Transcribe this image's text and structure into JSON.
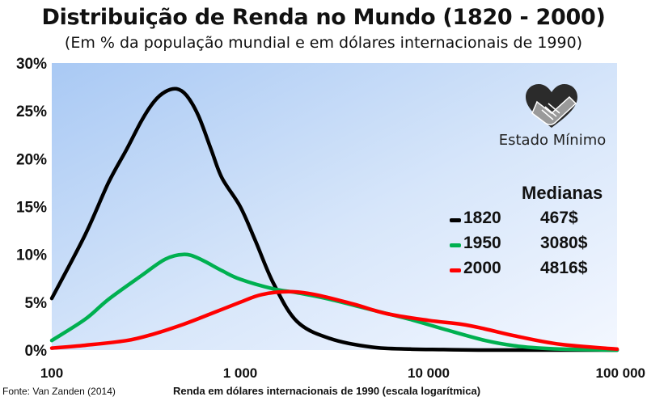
{
  "header": {
    "title": "Distribuição de Renda no Mundo (1820 - 2000)",
    "subtitle": "(Em % da população mundial e em dólares internacionais de 1990)"
  },
  "footer": {
    "source": "Fonte: Van Zanden (2014)"
  },
  "logo": {
    "text": "Estado Mínimo",
    "icon": "handshake-heart-icon"
  },
  "legend": {
    "title": "Medianas",
    "entries": [
      {
        "year": "1820",
        "median": "467$",
        "color": "#000000"
      },
      {
        "year": "1950",
        "median": "3080$",
        "color": "#00b050"
      },
      {
        "year": "2000",
        "median": "4816$",
        "color": "#ff0000"
      }
    ]
  },
  "chart_data": {
    "type": "line",
    "title": "Distribuição de Renda no Mundo (1820 - 2000)",
    "subtitle": "(Em % da população mundial e em dólares internacionais de 1990)",
    "xlabel": "Renda em dólares internacionais de 1990 (escala logarítmica)",
    "ylabel": "",
    "x_scale": "log",
    "xlim": [
      100,
      100000
    ],
    "ylim": [
      0,
      30
    ],
    "x_ticks": [
      100,
      1000,
      10000,
      100000
    ],
    "x_tick_labels": [
      "100",
      "1 000",
      "10 000",
      "100 000"
    ],
    "y_ticks": [
      0,
      5,
      10,
      15,
      20,
      25,
      30
    ],
    "y_tick_labels": [
      "0%",
      "5%",
      "10%",
      "15%",
      "20%",
      "25%",
      "30%"
    ],
    "grid": false,
    "legend_position": "right",
    "series": [
      {
        "name": "1820",
        "median": "467$",
        "color": "#000000",
        "points": [
          [
            100,
            5.4
          ],
          [
            150,
            12
          ],
          [
            200,
            17.5
          ],
          [
            250,
            21
          ],
          [
            300,
            24
          ],
          [
            350,
            26
          ],
          [
            400,
            27
          ],
          [
            460,
            27.3
          ],
          [
            520,
            26.6
          ],
          [
            600,
            24.5
          ],
          [
            700,
            21
          ],
          [
            800,
            18
          ],
          [
            1000,
            15
          ],
          [
            1200,
            11.5
          ],
          [
            1500,
            7
          ],
          [
            2000,
            3
          ],
          [
            3000,
            1.2
          ],
          [
            5000,
            0.3
          ],
          [
            8000,
            0.1
          ],
          [
            12000,
            0.05
          ],
          [
            20000,
            0
          ],
          [
            50000,
            0
          ],
          [
            100000,
            0
          ]
        ]
      },
      {
        "name": "1950",
        "median": "3080$",
        "color": "#00b050",
        "points": [
          [
            100,
            1
          ],
          [
            150,
            3.2
          ],
          [
            200,
            5.3
          ],
          [
            300,
            7.8
          ],
          [
            400,
            9.5
          ],
          [
            500,
            10
          ],
          [
            600,
            9.6
          ],
          [
            800,
            8.3
          ],
          [
            1000,
            7.4
          ],
          [
            1500,
            6.4
          ],
          [
            2000,
            6
          ],
          [
            3000,
            5.3
          ],
          [
            5000,
            4.2
          ],
          [
            8000,
            3.2
          ],
          [
            12000,
            2.2
          ],
          [
            20000,
            1
          ],
          [
            30000,
            0.4
          ],
          [
            50000,
            0.1
          ],
          [
            100000,
            0
          ]
        ]
      },
      {
        "name": "2000",
        "median": "4816$",
        "color": "#ff0000",
        "points": [
          [
            100,
            0.2
          ],
          [
            150,
            0.5
          ],
          [
            250,
            1
          ],
          [
            350,
            1.7
          ],
          [
            500,
            2.7
          ],
          [
            700,
            3.8
          ],
          [
            1000,
            5
          ],
          [
            1300,
            5.8
          ],
          [
            1800,
            6.1
          ],
          [
            2500,
            5.8
          ],
          [
            4000,
            4.8
          ],
          [
            6000,
            3.8
          ],
          [
            10000,
            3.1
          ],
          [
            15000,
            2.7
          ],
          [
            20000,
            2.2
          ],
          [
            30000,
            1.4
          ],
          [
            50000,
            0.6
          ],
          [
            100000,
            0.1
          ]
        ]
      }
    ]
  }
}
